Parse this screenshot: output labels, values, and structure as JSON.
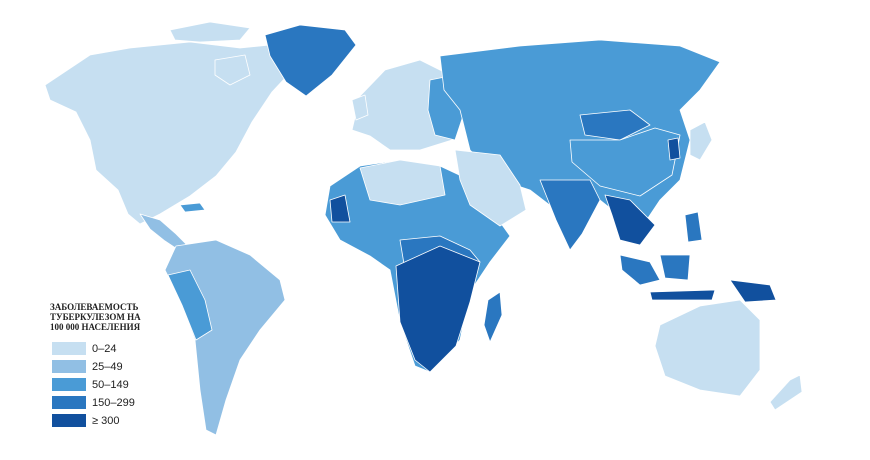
{
  "legend": {
    "title_lines": [
      "ЗАБОЛЕВАЕМОСТЬ",
      "ТУБЕРКУЛЕЗОМ НА",
      "100 000 НАСЕЛЕНИЯ"
    ],
    "items": [
      {
        "label": "0–24",
        "color": "#c6dff1"
      },
      {
        "label": "25–49",
        "color": "#91bfe4"
      },
      {
        "label": "50–149",
        "color": "#4a9bd6"
      },
      {
        "label": "150–299",
        "color": "#2a77c0"
      },
      {
        "label": "≥ 300",
        "color": "#11509e"
      }
    ]
  }
}
